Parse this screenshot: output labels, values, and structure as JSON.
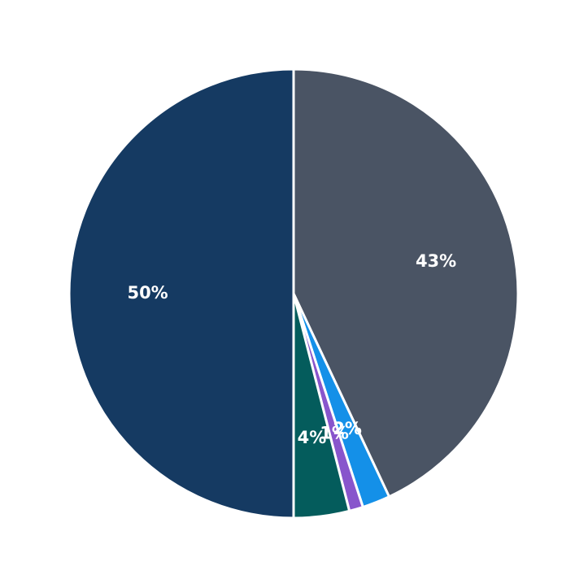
{
  "chart_data": {
    "type": "pie",
    "values": [
      43,
      2,
      1,
      4,
      50
    ],
    "value_labels": [
      "43%",
      "2%",
      "1%",
      "4%",
      "50%"
    ],
    "colors": [
      "#4a5464",
      "#1490e8",
      "#8855cc",
      "#045c5c",
      "#153a62"
    ]
  }
}
